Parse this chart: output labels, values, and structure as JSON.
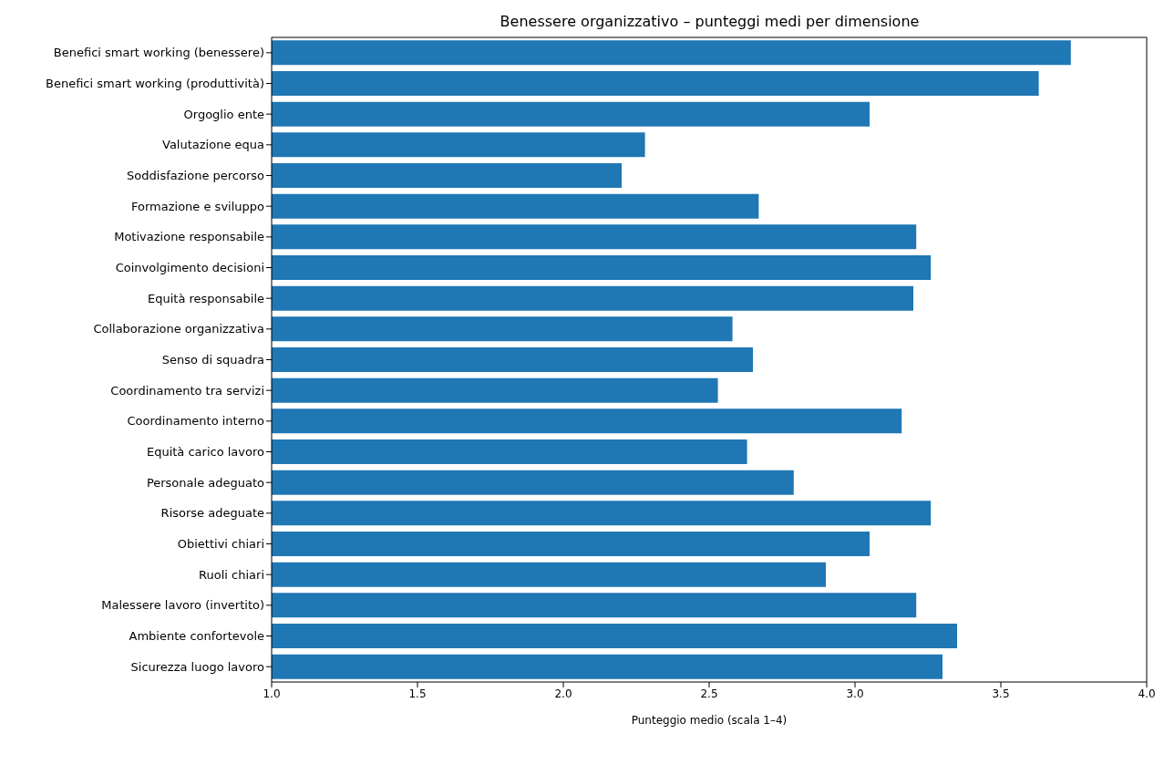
{
  "chart_data": {
    "type": "bar",
    "orientation": "horizontal",
    "title": "Benessere organizzativo – punteggi medi per dimensione",
    "xlabel": "Punteggio medio (scala 1–4)",
    "categories": [
      "Benefici smart working (benessere)",
      "Benefici smart working (produttività)",
      "Orgoglio ente",
      "Valutazione equa",
      "Soddisfazione percorso",
      "Formazione e sviluppo",
      "Motivazione responsabile",
      "Coinvolgimento decisioni",
      "Equità responsabile",
      "Collaborazione organizzativa",
      "Senso di squadra",
      "Coordinamento tra servizi",
      "Coordinamento interno",
      "Equità carico lavoro",
      "Personale adeguato",
      "Risorse adeguate",
      "Obiettivi chiari",
      "Ruoli chiari",
      "Malessere lavoro (invertito)",
      "Ambiente confortevole",
      "Sicurezza luogo lavoro"
    ],
    "values": [
      3.74,
      3.63,
      3.05,
      2.28,
      2.2,
      2.67,
      3.21,
      3.26,
      3.2,
      2.58,
      2.65,
      2.53,
      3.16,
      2.63,
      2.79,
      3.26,
      3.05,
      2.9,
      3.21,
      3.35,
      3.3
    ],
    "color": "#1f77b4",
    "xlim": [
      1,
      4
    ],
    "xticks": [
      {
        "value": 1,
        "label": "1.0"
      },
      {
        "value": 1.5,
        "label": "1.5"
      },
      {
        "value": 2,
        "label": "2.0"
      },
      {
        "value": 2.5,
        "label": "2.5"
      },
      {
        "value": 3,
        "label": "3.0"
      },
      {
        "value": 3.5,
        "label": "3.5"
      },
      {
        "value": 4,
        "label": "4.0"
      }
    ],
    "grid": false
  }
}
